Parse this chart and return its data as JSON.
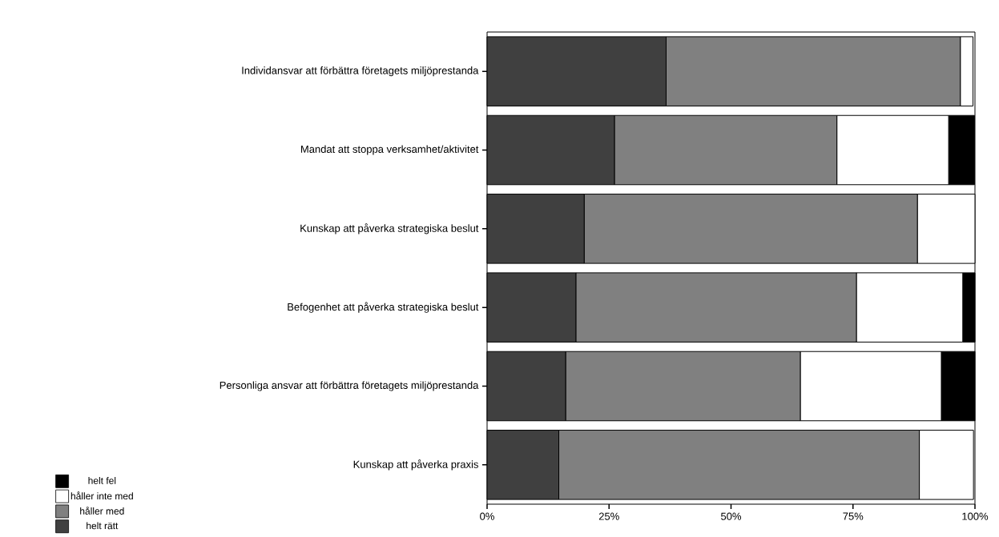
{
  "chart_data": {
    "type": "bar",
    "orientation": "horizontal",
    "stacked": true,
    "legend": "bottom left",
    "grid": false,
    "categories": [
      "Individansvar att förbättra företagets miljöprestanda",
      "Mandat att stoppa verksamhet/aktivitet",
      "Kunskap att påverka strategiska beslut",
      "Befogenhet att påverka strategiska beslut",
      "Personliga ansvar att förbättra företagets miljöprestanda",
      "Kunskap att påverka praxis"
    ],
    "series": [
      {
        "name": "helt rätt",
        "color": "#404040",
        "values": [
          36.7,
          26.1,
          19.9,
          18.2,
          16.1,
          14.7
        ]
      },
      {
        "name": "håller med",
        "color": "#808080",
        "values": [
          60.3,
          45.6,
          68.3,
          57.5,
          48.1,
          73.9
        ]
      },
      {
        "name": "håller inte med",
        "color": "#ffffff",
        "values": [
          2.6,
          22.9,
          11.8,
          21.8,
          28.9,
          11.1
        ]
      },
      {
        "name": "helt fel",
        "color": "#000000",
        "values": [
          0,
          5.3,
          0,
          2.5,
          6.9,
          0
        ]
      }
    ],
    "xlim": [
      0,
      100
    ],
    "xticks": [
      {
        "value": 0,
        "label": "0%"
      },
      {
        "value": 25,
        "label": "25%"
      },
      {
        "value": 50,
        "label": "50%"
      },
      {
        "value": 75,
        "label": "75%"
      },
      {
        "value": 100,
        "label": "100%"
      }
    ]
  }
}
